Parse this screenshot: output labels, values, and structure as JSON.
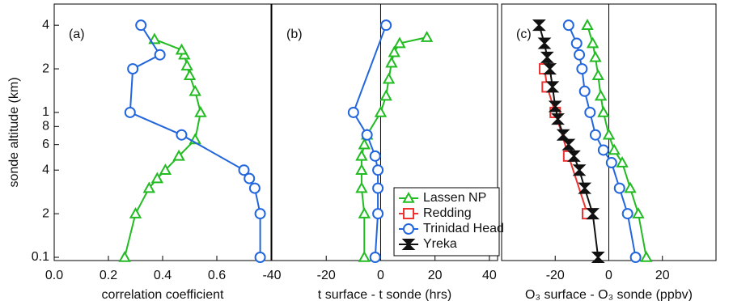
{
  "chart_data": [
    {
      "type": "line",
      "panel_label": "(a)",
      "xlabel": "correlation coefficient",
      "ylabel": "sonde altitude (km)",
      "xlim": [
        0,
        0.8
      ],
      "xticks": [
        {
          "value": 0,
          "label": "0.0"
        },
        0.2,
        0.4,
        0.6
      ],
      "ylim": [
        0.095,
        5.6
      ],
      "log_y": true,
      "yticks": [
        0.1,
        {
          "value": 0.2,
          "label": "2"
        },
        {
          "value": 0.4,
          "label": "4"
        },
        {
          "value": 0.6,
          "label": "6"
        },
        {
          "value": 0.8,
          "label": "8"
        },
        1,
        2,
        4
      ],
      "series": [
        {
          "color": "#22bb22",
          "marker": "triangle",
          "x": [
            0.26,
            0.3,
            0.35,
            0.38,
            0.41,
            0.46,
            0.52,
            0.54,
            0.52,
            0.5,
            0.49,
            0.48,
            0.47,
            0.37
          ],
          "y": [
            0.1,
            0.2,
            0.3,
            0.35,
            0.4,
            0.5,
            0.65,
            1,
            1.4,
            1.8,
            2.1,
            2.5,
            2.7,
            3.2
          ]
        },
        {
          "color": "#2266dd",
          "marker": "circle",
          "x": [
            0.76,
            0.76,
            0.74,
            0.72,
            0.7,
            0.47,
            0.28,
            0.29,
            0.39,
            0.32
          ],
          "y": [
            0.1,
            0.2,
            0.3,
            0.35,
            0.4,
            0.7,
            1,
            2,
            2.5,
            4
          ]
        }
      ]
    },
    {
      "type": "line",
      "panel_label": "(b)",
      "xlabel": "t surface - t sonde (hrs)",
      "xlim": [
        -40,
        43
      ],
      "xticks": [
        -40,
        -20,
        0,
        20,
        40
      ],
      "ylim": [
        0.095,
        5.6
      ],
      "log_y": true,
      "series": [
        {
          "color": "#22bb22",
          "marker": "triangle",
          "x": [
            -6,
            -6,
            -7,
            -7,
            -7,
            -6,
            -5,
            0,
            2,
            3,
            4,
            5,
            7,
            17
          ],
          "y": [
            0.1,
            0.2,
            0.3,
            0.4,
            0.5,
            0.6,
            0.7,
            1,
            1.3,
            1.7,
            2.2,
            2.6,
            3,
            3.3
          ]
        },
        {
          "color": "#2266dd",
          "marker": "circle",
          "x": [
            -2,
            -1,
            -1,
            -1,
            -2,
            -5,
            -10,
            2
          ],
          "y": [
            0.1,
            0.2,
            0.3,
            0.4,
            0.5,
            0.7,
            1,
            4
          ]
        }
      ]
    },
    {
      "type": "line",
      "panel_label": "(c)",
      "xlabel": "O₃ surface - O₃ sonde (ppbv)",
      "xlim": [
        -40,
        40
      ],
      "xticks": [
        -20,
        0,
        20
      ],
      "ylim": [
        0.095,
        5.6
      ],
      "log_y": true,
      "series": [
        {
          "name": "Lassen NP",
          "color": "#22bb22",
          "marker": "triangle",
          "x": [
            14,
            11,
            8,
            5,
            2,
            0,
            -2,
            -3,
            -4,
            -5,
            -6,
            -8
          ],
          "y": [
            0.1,
            0.2,
            0.3,
            0.45,
            0.55,
            0.7,
            1,
            1.3,
            1.8,
            2.4,
            3,
            4
          ]
        },
        {
          "name": "Redding",
          "color": "#ee3333",
          "marker": "square",
          "x": [
            -8,
            -15,
            -20,
            -23,
            -24
          ],
          "y": [
            0.2,
            0.5,
            1,
            1.5,
            2
          ]
        },
        {
          "name": "Trinidad Head",
          "color": "#2266dd",
          "marker": "circle",
          "x": [
            10,
            7,
            4,
            1,
            -2,
            -5,
            -7,
            -9,
            -10,
            -11,
            -12,
            -15
          ],
          "y": [
            0.1,
            0.2,
            0.3,
            0.45,
            0.55,
            0.7,
            1,
            1.4,
            2,
            2.5,
            3,
            4
          ]
        },
        {
          "name": "Yreka",
          "color": "#111111",
          "marker": "hourglass",
          "x": [
            -4,
            -6,
            -9,
            -11,
            -13,
            -15,
            -17,
            -19,
            -20,
            -21,
            -22,
            -23,
            -24,
            -26
          ],
          "y": [
            0.1,
            0.2,
            0.3,
            0.4,
            0.5,
            0.6,
            0.7,
            0.9,
            1.1,
            1.5,
            2,
            2.4,
            3,
            4
          ]
        }
      ]
    }
  ]
}
